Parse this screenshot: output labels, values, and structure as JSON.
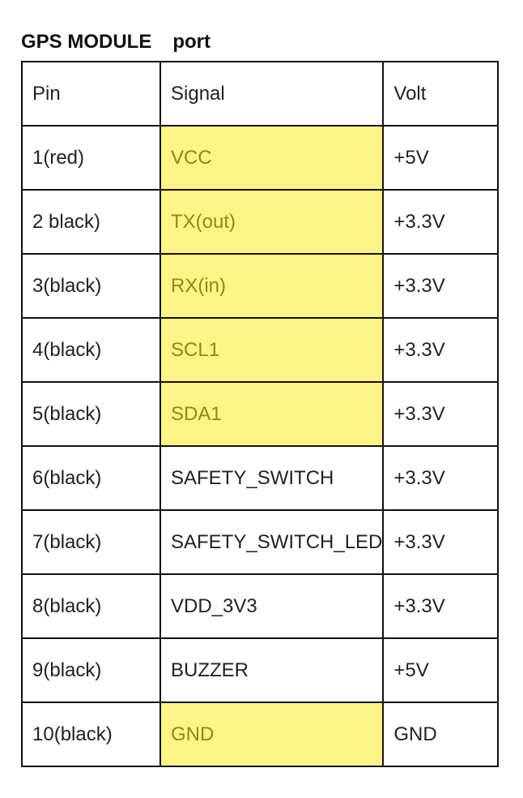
{
  "title": {
    "part1": "GPS MODULE",
    "part2": "port"
  },
  "table": {
    "headers": [
      "Pin",
      "Signal",
      "Volt"
    ],
    "rows": [
      {
        "pin": "1(red)",
        "signal": "VCC",
        "volt": "+5V",
        "highlight": true
      },
      {
        "pin": "2 black)",
        "signal": "TX(out)",
        "volt": "+3.3V",
        "highlight": true
      },
      {
        "pin": "3(black)",
        "signal": "RX(in)",
        "volt": "+3.3V",
        "highlight": true
      },
      {
        "pin": "4(black)",
        "signal": "SCL1",
        "volt": "+3.3V",
        "highlight": true
      },
      {
        "pin": "5(black)",
        "signal": "SDA1",
        "volt": "+3.3V",
        "highlight": true
      },
      {
        "pin": "6(black)",
        "signal": "SAFETY_SWITCH",
        "volt": "+3.3V",
        "highlight": false
      },
      {
        "pin": "7(black)",
        "signal": "SAFETY_SWITCH_LED",
        "volt": "+3.3V",
        "highlight": false
      },
      {
        "pin": "8(black)",
        "signal": "VDD_3V3",
        "volt": "+3.3V",
        "highlight": false
      },
      {
        "pin": "9(black)",
        "signal": "BUZZER",
        "volt": "+5V",
        "highlight": false
      },
      {
        "pin": "10(black)",
        "signal": "GND",
        "volt": "GND",
        "highlight": true
      }
    ]
  },
  "colors": {
    "highlight_fill": "#fef486",
    "highlight_text": "#8a8a1a"
  }
}
